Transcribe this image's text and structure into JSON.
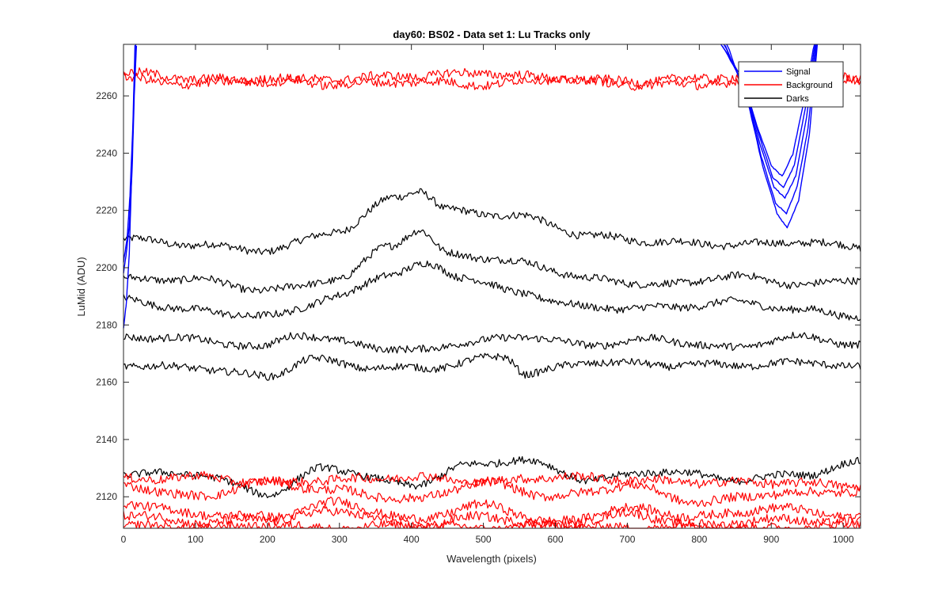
{
  "chart_data": {
    "type": "line",
    "title": "day60: BS02 - Data set 1: Lu Tracks only",
    "xlabel": "Wavelength (pixels)",
    "ylabel": "LuMid (ADU)",
    "xlim": [
      0,
      1024
    ],
    "ylim": [
      2109,
      2278
    ],
    "xticks": [
      0,
      100,
      200,
      300,
      400,
      500,
      600,
      700,
      800,
      900,
      1000
    ],
    "yticks": [
      2120,
      2140,
      2160,
      2180,
      2200,
      2220,
      2240,
      2260
    ],
    "grid": false,
    "legend": {
      "location": "top-right",
      "entries": [
        {
          "label": "Signal",
          "color": "#0000ff"
        },
        {
          "label": "Background",
          "color": "#ff0000"
        },
        {
          "label": "Darks",
          "color": "#000000"
        }
      ]
    },
    "colors": {
      "signal": "#0000ff",
      "background": "#ff0000",
      "darks": "#000000",
      "axes": "#262626"
    },
    "series": [
      {
        "group": "darks",
        "x": [
          0,
          100,
          200,
          300,
          380,
          410,
          450,
          550,
          650,
          750,
          850,
          950,
          1024
        ],
        "y": [
          2210,
          2208,
          2206,
          2213,
          2225,
          2227,
          2220,
          2218,
          2211,
          2209,
          2208,
          2209,
          2207
        ]
      },
      {
        "group": "darks",
        "x": [
          0,
          100,
          200,
          300,
          370,
          410,
          450,
          550,
          650,
          750,
          850,
          950,
          1024
        ],
        "y": [
          2196,
          2196,
          2192,
          2196,
          2208,
          2213,
          2205,
          2202,
          2196,
          2194,
          2197,
          2194,
          2196
        ]
      },
      {
        "group": "darks",
        "x": [
          0,
          100,
          200,
          300,
          370,
          420,
          470,
          550,
          650,
          750,
          850,
          950,
          1024
        ],
        "y": [
          2189,
          2185,
          2183,
          2190,
          2198,
          2201,
          2197,
          2191,
          2186,
          2186,
          2188,
          2185,
          2183
        ]
      },
      {
        "group": "darks",
        "x": [
          0,
          100,
          190,
          240,
          300,
          400,
          480,
          560,
          640,
          740,
          840,
          940,
          1024
        ],
        "y": [
          2176,
          2175,
          2172,
          2177,
          2174,
          2171,
          2174,
          2176,
          2173,
          2175,
          2172,
          2176,
          2173
        ]
      },
      {
        "group": "darks",
        "x": [
          0,
          100,
          200,
          260,
          350,
          420,
          530,
          560,
          650,
          760,
          860,
          960,
          1024
        ],
        "y": [
          2166,
          2165,
          2162,
          2168,
          2165,
          2165,
          2169,
          2163,
          2167,
          2166,
          2166,
          2167,
          2165
        ]
      },
      {
        "group": "darks",
        "x": [
          0,
          100,
          200,
          280,
          400,
          480,
          550,
          650,
          750,
          850,
          950,
          1024
        ],
        "y": [
          2128,
          2128,
          2121,
          2130,
          2124,
          2131,
          2133,
          2126,
          2129,
          2126,
          2128,
          2132
        ]
      },
      {
        "group": "background",
        "x": [
          0,
          100,
          200,
          300,
          400,
          500,
          600,
          700,
          800,
          900,
          1024
        ],
        "y": [
          2268,
          2266,
          2265,
          2266,
          2267,
          2268,
          2266,
          2265,
          2266,
          2268,
          2266
        ]
      },
      {
        "group": "background",
        "x": [
          0,
          100,
          200,
          300,
          400,
          500,
          600,
          700,
          800,
          900,
          1024
        ],
        "y": [
          2266,
          2264,
          2266,
          2264,
          2265,
          2264,
          2266,
          2264,
          2264,
          2266,
          2266
        ]
      },
      {
        "group": "background",
        "x": [
          0,
          100,
          200,
          300,
          400,
          500,
          600,
          700,
          800,
          900,
          1024
        ],
        "y": [
          2126,
          2127,
          2125,
          2126,
          2127,
          2125,
          2127,
          2126,
          2125,
          2125,
          2124
        ]
      },
      {
        "group": "background",
        "x": [
          0,
          100,
          200,
          300,
          400,
          500,
          600,
          700,
          800,
          900,
          1024
        ],
        "y": [
          2124,
          2120,
          2125,
          2122,
          2119,
          2125,
          2120,
          2124,
          2118,
          2121,
          2122
        ]
      },
      {
        "group": "background",
        "x": [
          0,
          100,
          200,
          300,
          400,
          500,
          600,
          700,
          800,
          900,
          1024
        ],
        "y": [
          2118,
          2114,
          2113,
          2118,
          2112,
          2117,
          2111,
          2116,
          2113,
          2116,
          2113
        ]
      },
      {
        "group": "background",
        "x": [
          0,
          100,
          200,
          300,
          400,
          500,
          600,
          700,
          800,
          900,
          1024
        ],
        "y": [
          2114,
          2111,
          2112,
          2115,
          2110,
          2113,
          2110,
          2114,
          2110,
          2112,
          2111
        ]
      },
      {
        "group": "background",
        "x": [
          0,
          100,
          200,
          300,
          400,
          500,
          600,
          700,
          800,
          900,
          1024
        ],
        "y": [
          2110,
          2109,
          2110,
          2109,
          2110,
          2109,
          2110,
          2109,
          2110,
          2109,
          2110
        ]
      },
      {
        "group": "signal",
        "x": [
          0,
          4,
          8,
          11,
          14,
          17
        ],
        "y": [
          2179,
          2188,
          2205,
          2230,
          2255,
          2278
        ]
      },
      {
        "group": "signal",
        "x": [
          0,
          4,
          8,
          12,
          15,
          18
        ],
        "y": [
          2198,
          2205,
          2215,
          2235,
          2260,
          2278
        ]
      },
      {
        "group": "signal",
        "x": [
          0,
          5,
          9,
          13,
          16
        ],
        "y": [
          2202,
          2210,
          2225,
          2250,
          2278
        ]
      },
      {
        "group": "signal",
        "x": [
          830,
          860,
          880,
          900,
          915,
          930,
          945,
          960
        ],
        "y": [
          2278,
          2266,
          2250,
          2236,
          2232,
          2240,
          2258,
          2278
        ]
      },
      {
        "group": "signal",
        "x": [
          832,
          862,
          882,
          902,
          917,
          932,
          947,
          961
        ],
        "y": [
          2278,
          2264,
          2247,
          2232,
          2228,
          2236,
          2255,
          2278
        ]
      },
      {
        "group": "signal",
        "x": [
          834,
          864,
          884,
          904,
          919,
          934,
          949,
          962
        ],
        "y": [
          2278,
          2262,
          2243,
          2228,
          2224,
          2232,
          2252,
          2278
        ]
      },
      {
        "group": "signal",
        "x": [
          836,
          866,
          886,
          906,
          921,
          936,
          951,
          963
        ],
        "y": [
          2278,
          2260,
          2239,
          2223,
          2219,
          2228,
          2249,
          2278
        ]
      },
      {
        "group": "signal",
        "x": [
          838,
          868,
          888,
          908,
          922,
          938,
          953,
          964
        ],
        "y": [
          2278,
          2258,
          2235,
          2219,
          2214,
          2224,
          2246,
          2278
        ]
      }
    ]
  }
}
